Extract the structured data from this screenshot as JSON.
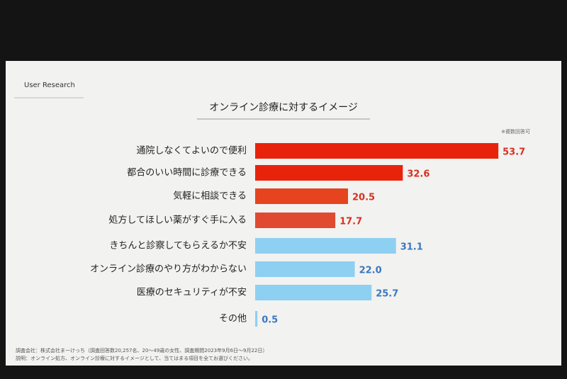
{
  "header": {
    "section": "User Research"
  },
  "chart_data": {
    "type": "bar",
    "orientation": "horizontal",
    "title": "オンライン診療に対するイメージ",
    "note": "※複数回答可",
    "categories": [
      "通院しなくてよいので便利",
      "都合のいい時間に診療できる",
      "気軽に相談できる",
      "処方してほしい薬がすぐ手に入る",
      "きちんと診察してもらえるか不安",
      "オンライン診療のやり方がわからない",
      "医療のセキュリティが不安",
      "その他"
    ],
    "values": [
      53.7,
      32.6,
      20.5,
      17.7,
      31.1,
      22.0,
      25.7,
      0.5
    ],
    "value_labels": [
      "53.7",
      "32.6",
      "20.5",
      "17.7",
      "31.1",
      "22.0",
      "25.7",
      "0.5"
    ],
    "colors": [
      "#e8230c",
      "#e8230c",
      "#e5441f",
      "#e04a30",
      "#8ed0f2",
      "#8ed0f2",
      "#8ed0f2",
      "#8ed0f2"
    ],
    "label_colors": [
      "#d8301f",
      "#d8301f",
      "#d8301f",
      "#d8301f",
      "#3a78c0",
      "#3a78c0",
      "#3a78c0",
      "#3a78c0"
    ]
  },
  "footer": {
    "lines": [
      "調査会社：株式会社まーけっち（調査回答数20,257名、20〜49歳の女性、調査期間2023年9月6日〜9月22日）",
      "説明：オンライン処方、オンライン診療に対するイメージとして、当てはまる項目を全てお選びください。"
    ]
  }
}
